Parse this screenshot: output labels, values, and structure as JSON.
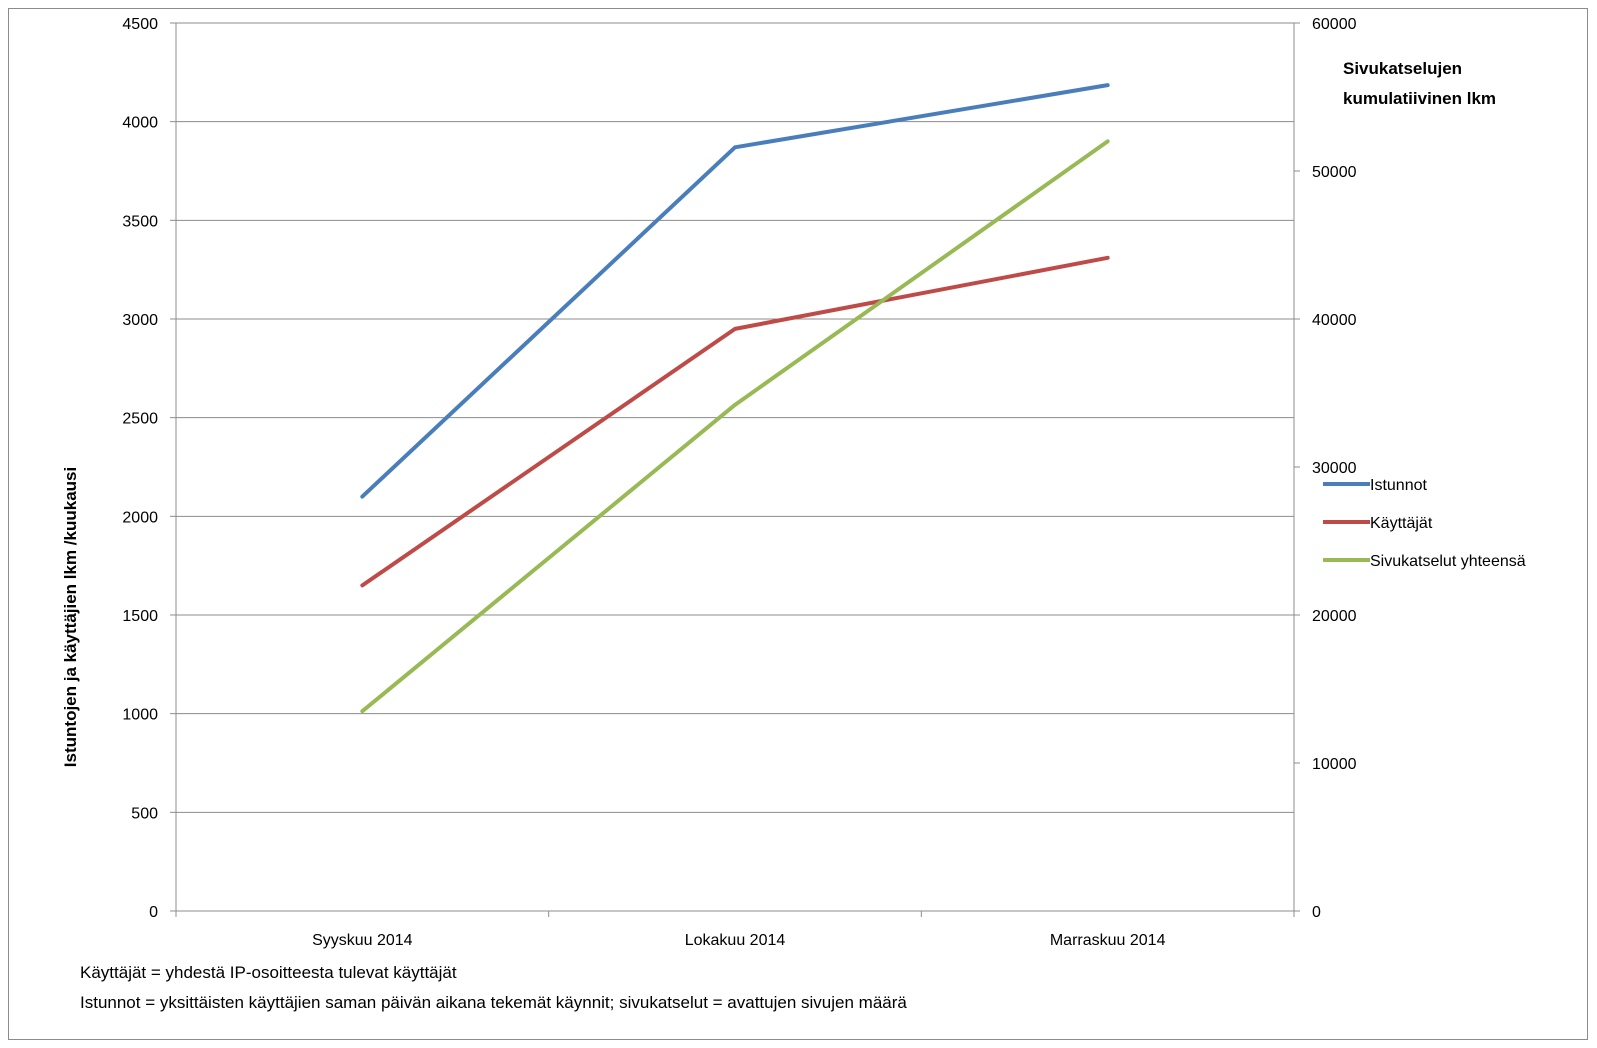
{
  "chart_data": {
    "type": "line",
    "categories": [
      "Syyskuu 2014",
      "Lokakuu 2014",
      "Marraskuu 2014"
    ],
    "ylabel": "Istuntojen ja käyttäjien lkm /kuukausi",
    "y2label_lines": [
      "Sivukatselujen",
      "kumulatiivinen lkm"
    ],
    "ylim": [
      0,
      4500
    ],
    "yticks": [
      0,
      500,
      1000,
      1500,
      2000,
      2500,
      3000,
      3500,
      4000,
      4500
    ],
    "y2lim": [
      0,
      60000
    ],
    "y2ticks": [
      0,
      10000,
      20000,
      30000,
      40000,
      50000,
      60000
    ],
    "grid": true,
    "legend_position": "right",
    "series": [
      {
        "name": "Istunnot",
        "axis": "left",
        "color": "#4a7ebb",
        "values": [
          2100,
          3870,
          4185
        ]
      },
      {
        "name": "Käyttäjät",
        "axis": "left",
        "color": "#be4b48",
        "values": [
          1650,
          2950,
          3310
        ]
      },
      {
        "name": "Sivukatselut yhteensä",
        "axis": "right",
        "color": "#98b954",
        "values": [
          13500,
          34200,
          52000
        ]
      }
    ]
  },
  "notes": [
    "Käyttäjät  = yhdestä IP-osoitteesta tulevat käyttäjät",
    "Istunnot = yksittäisten käyttäjien saman päivän aikana tekemät käynnit; sivukatselut = avattujen sivujen määrä"
  ]
}
